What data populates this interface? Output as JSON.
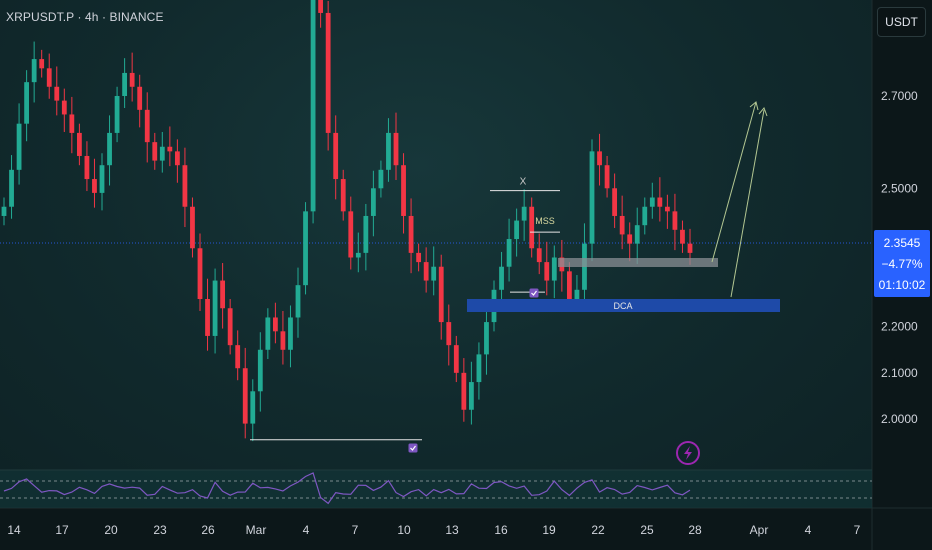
{
  "header": {
    "symbol_line": "XRPUSDT.P · 4h · BINANCE"
  },
  "axis": {
    "unit_label": "USDT",
    "last_price": "2.3545",
    "change": "−4.77%",
    "countdown": "01:10:02"
  },
  "annotations": {
    "x_label": "X",
    "mss_label": "MSS",
    "dca_label": "DCA"
  },
  "colors": {
    "up": "#22ab94",
    "down": "#f23645",
    "dca_zone": "#1e4aa8",
    "gray_zone": "#8a8f94",
    "rsi": "#7e57c2",
    "projection": "#b3c792",
    "price_line": "#2962ff"
  },
  "icons": {
    "check_badge": "check-badge-icon",
    "lightning": "lightning-icon"
  },
  "chart_data": {
    "type": "candlestick",
    "title": "XRPUSDT.P · 4h · BINANCE",
    "x_ticks": [
      "14",
      "17",
      "20",
      "23",
      "26",
      "Mar",
      "4",
      "7",
      "10",
      "13",
      "16",
      "19",
      "22",
      "25",
      "28",
      "Apr",
      "4",
      "7"
    ],
    "y_ticks": [
      2.7,
      2.5,
      2.2,
      2.1,
      2.0
    ],
    "y_tick_labels": [
      "2.7000",
      "2.5000",
      "2.2000",
      "2.1000",
      "2.0000"
    ],
    "ylim": [
      1.83,
      2.97
    ],
    "last_price": 2.3545,
    "change_pct": -4.77,
    "countdown": "01:10:02",
    "series_closes": [
      2.46,
      2.54,
      2.64,
      2.73,
      2.78,
      2.76,
      2.72,
      2.69,
      2.66,
      2.62,
      2.57,
      2.52,
      2.49,
      2.55,
      2.62,
      2.7,
      2.75,
      2.72,
      2.67,
      2.6,
      2.56,
      2.59,
      2.58,
      2.55,
      2.46,
      2.37,
      2.26,
      2.18,
      2.3,
      2.24,
      2.16,
      2.11,
      1.99,
      2.06,
      2.15,
      2.22,
      2.19,
      2.15,
      2.22,
      2.29,
      2.45,
      2.95,
      2.88,
      2.62,
      2.52,
      2.45,
      2.35,
      2.36,
      2.44,
      2.5,
      2.54,
      2.62,
      2.55,
      2.44,
      2.36,
      2.34,
      2.3,
      2.33,
      2.21,
      2.16,
      2.1,
      2.02,
      2.08,
      2.14,
      2.21,
      2.28,
      2.33,
      2.39,
      2.43,
      2.46,
      2.37,
      2.34,
      2.3,
      2.35,
      2.32,
      2.26,
      2.28,
      2.38,
      2.58,
      2.55,
      2.5,
      2.44,
      2.4,
      2.38,
      2.42,
      2.46,
      2.48,
      2.46,
      2.45,
      2.41,
      2.38,
      2.36
    ],
    "annotations": [
      {
        "type": "horizontal_level",
        "price": 1.955,
        "label": ""
      },
      {
        "type": "horizontal_level",
        "price": 2.495,
        "label": "X"
      },
      {
        "type": "horizontal_level",
        "price": 2.405,
        "label": "MSS"
      },
      {
        "type": "zone",
        "from": 2.315,
        "to": 2.325,
        "label": ""
      },
      {
        "type": "zone",
        "from": 2.211,
        "to": 2.224,
        "label": "DCA"
      },
      {
        "type": "projection",
        "target": 2.69
      }
    ],
    "indicator": {
      "type": "RSI",
      "levels": [
        70,
        30
      ]
    },
    "grid": false
  }
}
